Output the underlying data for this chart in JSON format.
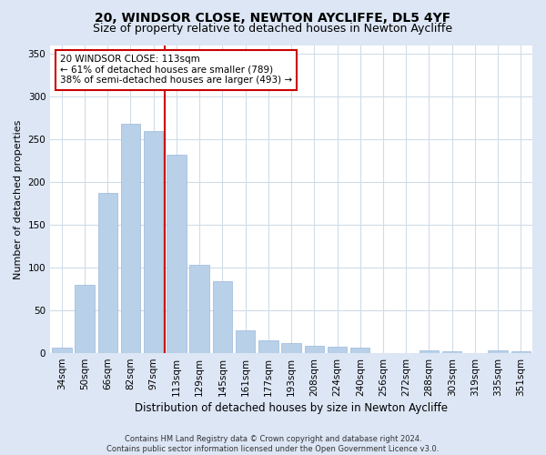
{
  "title1": "20, WINDSOR CLOSE, NEWTON AYCLIFFE, DL5 4YF",
  "title2": "Size of property relative to detached houses in Newton Aycliffe",
  "xlabel": "Distribution of detached houses by size in Newton Aycliffe",
  "ylabel": "Number of detached properties",
  "categories": [
    "34sqm",
    "50sqm",
    "66sqm",
    "82sqm",
    "97sqm",
    "113sqm",
    "129sqm",
    "145sqm",
    "161sqm",
    "177sqm",
    "193sqm",
    "208sqm",
    "224sqm",
    "240sqm",
    "256sqm",
    "272sqm",
    "288sqm",
    "303sqm",
    "319sqm",
    "335sqm",
    "351sqm"
  ],
  "values": [
    6,
    80,
    187,
    268,
    260,
    232,
    103,
    84,
    27,
    15,
    12,
    9,
    8,
    6,
    0,
    0,
    3,
    2,
    0,
    3,
    2
  ],
  "bar_color": "#b8d0e8",
  "bar_edge_color": "#9ab8d8",
  "vline_x": 4.5,
  "vline_color": "#cc0000",
  "annotation_text": "20 WINDSOR CLOSE: 113sqm\n← 61% of detached houses are smaller (789)\n38% of semi-detached houses are larger (493) →",
  "annotation_box_color": "#ffffff",
  "annotation_box_edge": "#cc0000",
  "ylim": [
    0,
    360
  ],
  "yticks": [
    0,
    50,
    100,
    150,
    200,
    250,
    300,
    350
  ],
  "footer": "Contains HM Land Registry data © Crown copyright and database right 2024.\nContains public sector information licensed under the Open Government Licence v3.0.",
  "fig_bg_color": "#dce6f5",
  "plot_bg_color": "#ffffff",
  "title1_fontsize": 10,
  "title2_fontsize": 9,
  "xlabel_fontsize": 8.5,
  "ylabel_fontsize": 8,
  "tick_fontsize": 7.5,
  "footer_fontsize": 6,
  "annot_fontsize": 7.5
}
